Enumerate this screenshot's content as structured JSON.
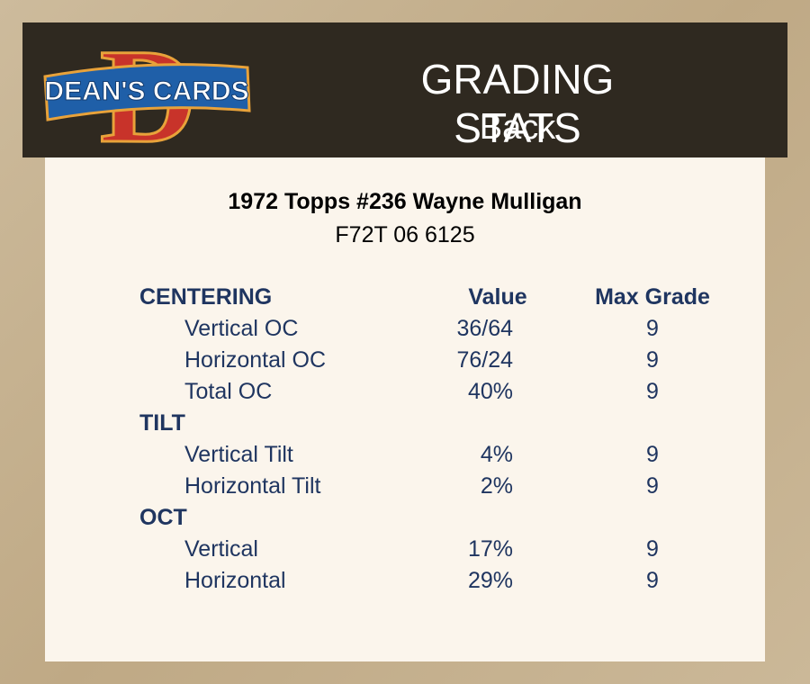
{
  "logo": {
    "letter": "D",
    "text": "DEAN'S CARDS"
  },
  "header": {
    "title": "GRADING STATS",
    "subtitle": "Back"
  },
  "card": {
    "name": "1972 Topps #236 Wayne Mulligan",
    "code": "F72T 06 6125"
  },
  "table": {
    "columns": [
      "Value",
      "Max Grade"
    ],
    "sections": [
      {
        "name": "CENTERING",
        "rows": [
          {
            "label": "Vertical OC",
            "value": "36/64",
            "max_grade": "9"
          },
          {
            "label": "Horizontal OC",
            "value": "76/24",
            "max_grade": "9"
          },
          {
            "label": "Total OC",
            "value": "40%",
            "max_grade": "9"
          }
        ]
      },
      {
        "name": "TILT",
        "rows": [
          {
            "label": "Vertical Tilt",
            "value": "4%",
            "max_grade": "9"
          },
          {
            "label": "Horizontal Tilt",
            "value": "2%",
            "max_grade": "9"
          }
        ]
      },
      {
        "name": "OCT",
        "rows": [
          {
            "label": "Vertical",
            "value": "17%",
            "max_grade": "9"
          },
          {
            "label": "Horizontal",
            "value": "29%",
            "max_grade": "9"
          }
        ]
      }
    ]
  }
}
